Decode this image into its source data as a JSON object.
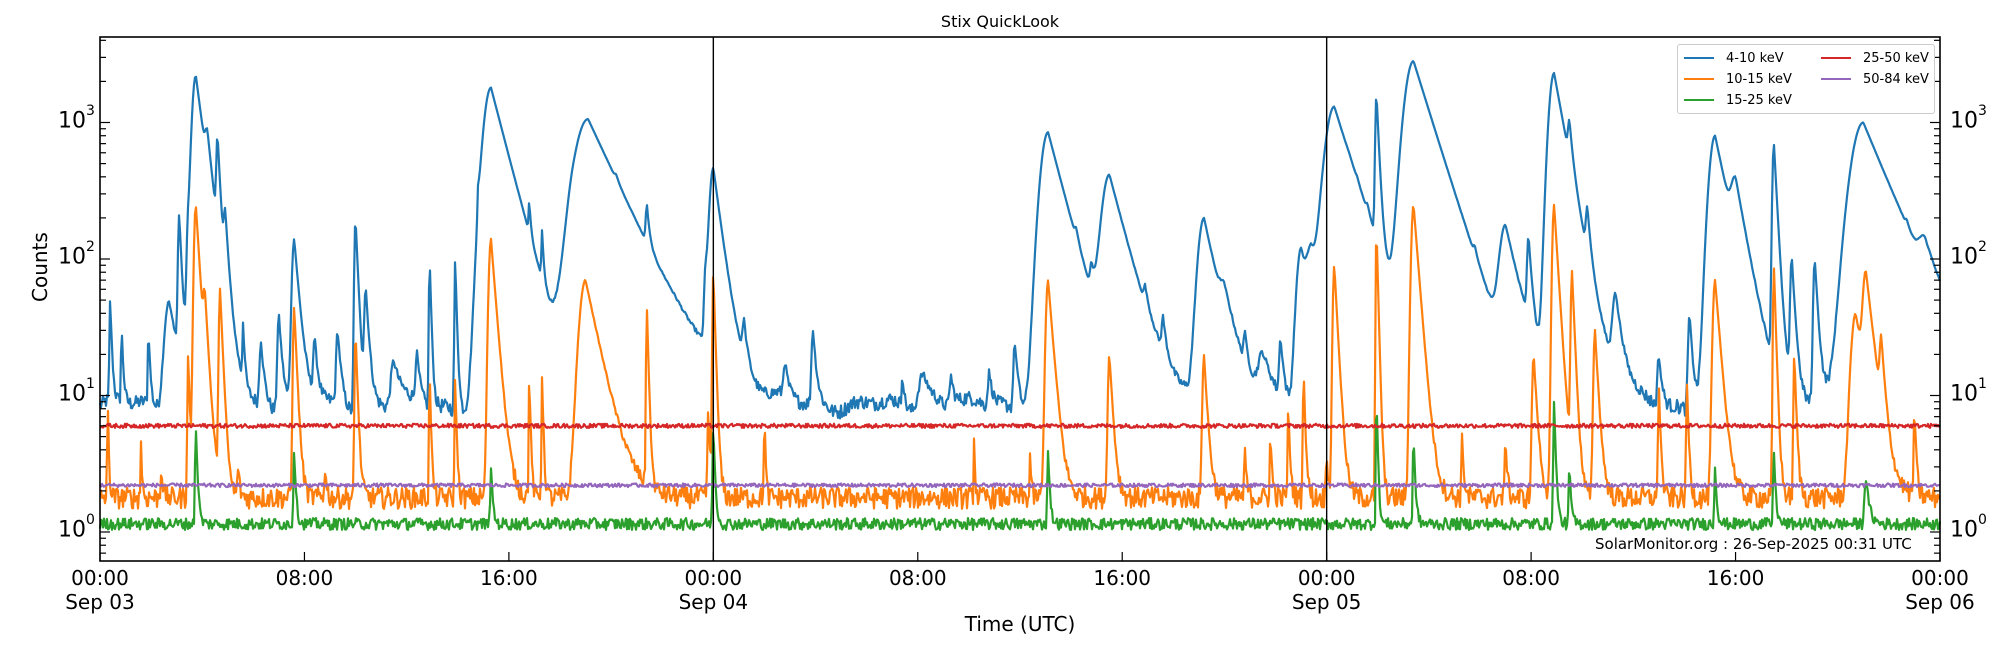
{
  "chart_data": {
    "type": "line",
    "title": "Stix QuickLook",
    "xlabel": "Time (UTC)",
    "ylabel": "Counts",
    "yscale": "log",
    "ylim": [
      0.6,
      4300
    ],
    "xlim_hours": [
      0,
      72
    ],
    "grid": false,
    "legend_position": "upper right",
    "x_ticks": [
      {
        "hour": 0,
        "label": "00:00",
        "date": "Sep 03"
      },
      {
        "hour": 8,
        "label": "08:00",
        "date": ""
      },
      {
        "hour": 16,
        "label": "16:00",
        "date": ""
      },
      {
        "hour": 24,
        "label": "00:00",
        "date": "Sep 04"
      },
      {
        "hour": 32,
        "label": "08:00",
        "date": ""
      },
      {
        "hour": 40,
        "label": "16:00",
        "date": ""
      },
      {
        "hour": 48,
        "label": "00:00",
        "date": "Sep 05"
      },
      {
        "hour": 56,
        "label": "08:00",
        "date": ""
      },
      {
        "hour": 64,
        "label": "16:00",
        "date": ""
      },
      {
        "hour": 72,
        "label": "00:00",
        "date": "Sep 06"
      }
    ],
    "y_ticks": [
      {
        "exp": "0",
        "value": 1
      },
      {
        "exp": "1",
        "value": 10
      },
      {
        "exp": "2",
        "value": 100
      },
      {
        "exp": "3",
        "value": 1000
      }
    ],
    "day_boundaries_hours": [
      24,
      48
    ],
    "series": [
      {
        "name": "4-10 keV",
        "color": "#1f77b4",
        "baseline": 8.5,
        "noise": 0.12,
        "peaks": [
          [
            0.4,
            50,
            0.05
          ],
          [
            0.85,
            30,
            0.05
          ],
          [
            1.9,
            30,
            0.05
          ],
          [
            2.7,
            50,
            0.3
          ],
          [
            3.1,
            200,
            0.08
          ],
          [
            3.45,
            120,
            0.1
          ],
          [
            3.75,
            2200,
            0.25
          ],
          [
            4.2,
            400,
            0.15
          ],
          [
            4.6,
            650,
            0.08
          ],
          [
            4.9,
            150,
            0.1
          ],
          [
            5.6,
            30,
            0.05
          ],
          [
            6.3,
            25,
            0.1
          ],
          [
            7.0,
            40,
            0.1
          ],
          [
            7.6,
            140,
            0.15
          ],
          [
            8.4,
            25,
            0.1
          ],
          [
            9.3,
            30,
            0.1
          ],
          [
            10.0,
            200,
            0.08
          ],
          [
            10.4,
            60,
            0.1
          ],
          [
            11.5,
            18,
            0.2
          ],
          [
            12.4,
            20,
            0.1
          ],
          [
            12.9,
            100,
            0.05
          ],
          [
            13.9,
            100,
            0.05
          ],
          [
            14.8,
            130,
            0.05
          ],
          [
            15.3,
            1800,
            0.5
          ],
          [
            16.8,
            120,
            0.05
          ],
          [
            17.3,
            100,
            0.05
          ],
          [
            18.5,
            40,
            0.3
          ],
          [
            19.1,
            1050,
            0.9
          ],
          [
            20.2,
            40,
            0.1
          ],
          [
            21.4,
            130,
            0.08
          ],
          [
            23.7,
            60,
            0.1
          ],
          [
            24.0,
            450,
            0.25
          ],
          [
            25.2,
            25,
            0.1
          ],
          [
            26.8,
            16,
            0.1
          ],
          [
            27.9,
            30,
            0.1
          ],
          [
            31.4,
            15,
            0.05
          ],
          [
            32.2,
            15,
            0.3
          ],
          [
            33.3,
            14,
            0.1
          ],
          [
            34.8,
            15,
            0.1
          ],
          [
            35.8,
            25,
            0.1
          ],
          [
            37.1,
            850,
            0.5
          ],
          [
            38.2,
            35,
            0.1
          ],
          [
            38.8,
            40,
            0.1
          ],
          [
            39.5,
            400,
            0.5
          ],
          [
            40.9,
            25,
            0.1
          ],
          [
            41.6,
            25,
            0.1
          ],
          [
            43.2,
            200,
            0.4
          ],
          [
            44.0,
            30,
            0.3
          ],
          [
            44.8,
            20,
            0.1
          ],
          [
            45.5,
            18,
            0.3
          ],
          [
            46.2,
            25,
            0.1
          ],
          [
            47.0,
            120,
            0.3
          ],
          [
            47.4,
            80,
            0.3
          ],
          [
            48.3,
            1300,
            0.6
          ],
          [
            48.9,
            20,
            0.2
          ],
          [
            49.2,
            25,
            0.1
          ],
          [
            49.6,
            40,
            0.1
          ],
          [
            49.95,
            1500,
            0.08
          ],
          [
            51.4,
            2800,
            0.6
          ],
          [
            53.8,
            25,
            0.1
          ],
          [
            55.0,
            160,
            0.4
          ],
          [
            55.9,
            120,
            0.1
          ],
          [
            56.9,
            2300,
            0.35
          ],
          [
            57.5,
            500,
            0.1
          ],
          [
            58.2,
            140,
            0.1
          ],
          [
            59.3,
            50,
            0.2
          ],
          [
            61.0,
            20,
            0.1
          ],
          [
            62.2,
            40,
            0.1
          ],
          [
            63.2,
            800,
            0.4
          ],
          [
            64.0,
            250,
            0.3
          ],
          [
            65.5,
            700,
            0.1
          ],
          [
            66.2,
            100,
            0.1
          ],
          [
            67.1,
            100,
            0.1
          ],
          [
            69.0,
            1000,
            0.8
          ],
          [
            70.7,
            25,
            0.1
          ],
          [
            71.4,
            65,
            0.4
          ]
        ]
      },
      {
        "name": "10-15 keV",
        "color": "#ff7f0e",
        "baseline": 1.8,
        "noise": 0.18,
        "peaks": [
          [
            0.3,
            10,
            0.03
          ],
          [
            1.6,
            5,
            0.03
          ],
          [
            2.4,
            3,
            0.05
          ],
          [
            3.45,
            20,
            0.05
          ],
          [
            3.75,
            250,
            0.12
          ],
          [
            4.1,
            40,
            0.1
          ],
          [
            4.7,
            60,
            0.08
          ],
          [
            5.4,
            3,
            0.05
          ],
          [
            7.6,
            45,
            0.08
          ],
          [
            8.8,
            3,
            0.05
          ],
          [
            10.0,
            30,
            0.06
          ],
          [
            12.9,
            15,
            0.04
          ],
          [
            13.9,
            14,
            0.04
          ],
          [
            15.3,
            140,
            0.15
          ],
          [
            16.8,
            14,
            0.04
          ],
          [
            17.3,
            14,
            0.04
          ],
          [
            19.0,
            70,
            0.4
          ],
          [
            21.4,
            45,
            0.05
          ],
          [
            23.8,
            8,
            0.05
          ],
          [
            24.0,
            80,
            0.06
          ],
          [
            26.0,
            8,
            0.03
          ],
          [
            34.2,
            5,
            0.03
          ],
          [
            36.4,
            4,
            0.03
          ],
          [
            37.1,
            70,
            0.15
          ],
          [
            39.5,
            20,
            0.1
          ],
          [
            43.2,
            20,
            0.1
          ],
          [
            44.8,
            4,
            0.05
          ],
          [
            45.8,
            5,
            0.05
          ],
          [
            46.5,
            8,
            0.05
          ],
          [
            47.1,
            15,
            0.05
          ],
          [
            48.0,
            4,
            0.05
          ],
          [
            48.3,
            90,
            0.1
          ],
          [
            49.95,
            170,
            0.05
          ],
          [
            51.4,
            250,
            0.15
          ],
          [
            53.3,
            5,
            0.05
          ],
          [
            55.0,
            5,
            0.05
          ],
          [
            56.1,
            20,
            0.1
          ],
          [
            56.9,
            250,
            0.12
          ],
          [
            57.6,
            80,
            0.08
          ],
          [
            58.5,
            30,
            0.1
          ],
          [
            61.0,
            12,
            0.05
          ],
          [
            62.1,
            12,
            0.05
          ],
          [
            63.2,
            70,
            0.15
          ],
          [
            65.5,
            90,
            0.06
          ],
          [
            66.3,
            20,
            0.06
          ],
          [
            68.7,
            40,
            0.3
          ],
          [
            69.1,
            70,
            0.2
          ],
          [
            69.7,
            20,
            0.1
          ],
          [
            71.0,
            8,
            0.05
          ]
        ]
      },
      {
        "name": "15-25 keV",
        "color": "#2ca02c",
        "baseline": 1.15,
        "noise": 0.1,
        "peaks": [
          [
            3.75,
            6,
            0.05
          ],
          [
            7.6,
            4,
            0.05
          ],
          [
            15.3,
            3,
            0.05
          ],
          [
            24.0,
            6,
            0.05
          ],
          [
            37.1,
            4,
            0.05
          ],
          [
            49.95,
            10,
            0.04
          ],
          [
            51.4,
            5,
            0.05
          ],
          [
            56.9,
            9,
            0.05
          ],
          [
            57.5,
            3,
            0.05
          ],
          [
            63.2,
            3,
            0.05
          ],
          [
            65.5,
            4,
            0.05
          ],
          [
            69.1,
            2.5,
            0.1
          ]
        ]
      },
      {
        "name": "25-50 keV",
        "color": "#d62728",
        "baseline": 6.0,
        "noise": 0.035,
        "peaks": []
      },
      {
        "name": "50-84 keV",
        "color": "#9467bd",
        "baseline": 2.2,
        "noise": 0.03,
        "peaks": []
      }
    ]
  },
  "legend": {
    "items": [
      {
        "label": "4-10 keV",
        "color": "#1f77b4"
      },
      {
        "label": "10-15 keV",
        "color": "#ff7f0e"
      },
      {
        "label": "15-25 keV",
        "color": "#2ca02c"
      },
      {
        "label": "25-50 keV",
        "color": "#d62728"
      },
      {
        "label": "50-84 keV",
        "color": "#9467bd"
      }
    ]
  },
  "watermark": "SolarMonitor.org : 26-Sep-2025 00:31 UTC",
  "labels": {
    "title": "Stix QuickLook",
    "xlabel": "Time (UTC)",
    "ylabel": "Counts"
  }
}
